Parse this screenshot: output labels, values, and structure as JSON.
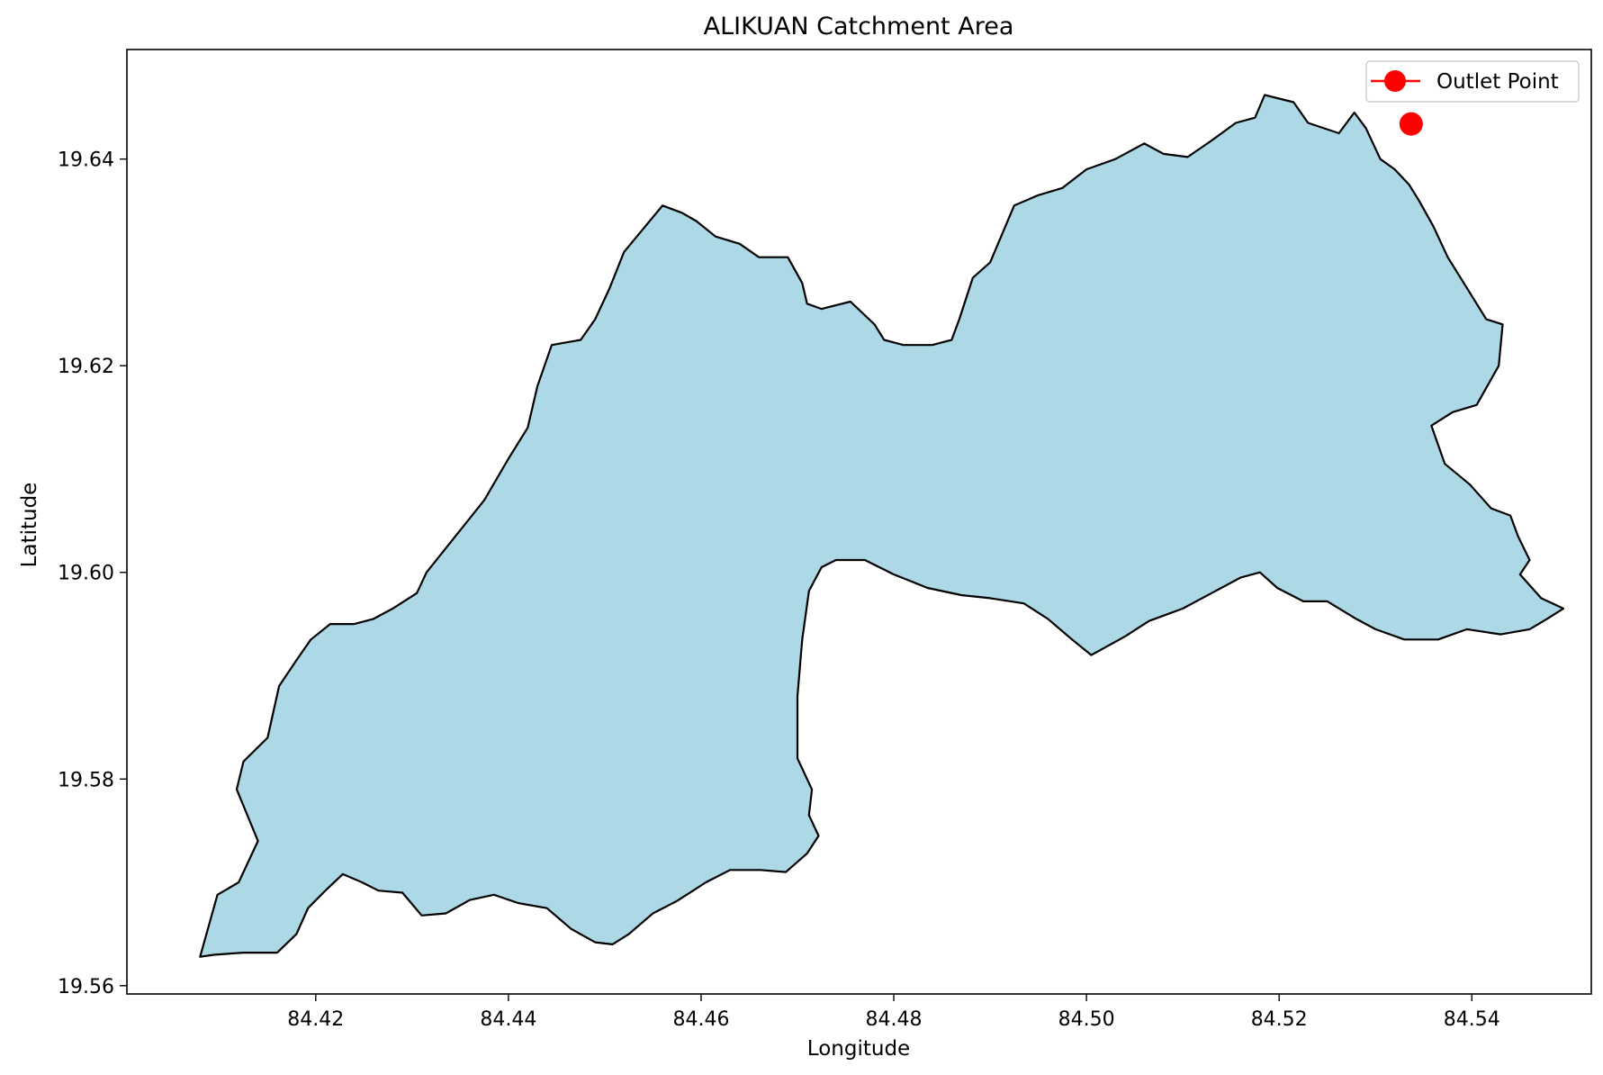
{
  "chart_data": {
    "type": "map",
    "title": "ALIKUAN Catchment Area",
    "xlabel": "Longitude",
    "ylabel": "Latitude",
    "xlim": [
      84.4004,
      84.5524
    ],
    "ylim": [
      19.5592,
      19.6506
    ],
    "xticks": [
      84.42,
      84.44,
      84.46,
      84.48,
      84.5,
      84.52,
      84.54
    ],
    "xtick_labels": [
      "84.42",
      "84.44",
      "84.46",
      "84.48",
      "84.50",
      "84.52",
      "84.54"
    ],
    "yticks": [
      19.56,
      19.58,
      19.6,
      19.62,
      19.64
    ],
    "ytick_labels": [
      "19.56",
      "19.58",
      "19.60",
      "19.62",
      "19.64"
    ],
    "grid": false,
    "legend": {
      "placement": "top-right",
      "entries": [
        {
          "label": "Outlet Point",
          "color": "#ff0000",
          "marker": "circle"
        }
      ]
    },
    "outlet_point": {
      "name": "Outlet Point",
      "lon": 84.5337,
      "lat": 19.6434,
      "color": "#ff0000"
    },
    "catchment": {
      "fill": "#add8e6",
      "edge": "#000000",
      "boundary": [
        [
          84.408,
          19.5628
        ],
        [
          84.4098,
          19.5688
        ],
        [
          84.412,
          19.57
        ],
        [
          84.414,
          19.574
        ],
        [
          84.4118,
          19.579
        ],
        [
          84.4125,
          19.5817
        ],
        [
          84.415,
          19.584
        ],
        [
          84.4162,
          19.589
        ],
        [
          84.418,
          19.5915
        ],
        [
          84.4195,
          19.5935
        ],
        [
          84.4215,
          19.595
        ],
        [
          84.424,
          19.595
        ],
        [
          84.426,
          19.5955
        ],
        [
          84.428,
          19.5965
        ],
        [
          84.4305,
          19.598
        ],
        [
          84.4315,
          19.6
        ],
        [
          84.4345,
          19.6035
        ],
        [
          84.4375,
          19.607
        ],
        [
          84.44,
          19.611
        ],
        [
          84.442,
          19.614
        ],
        [
          84.443,
          19.618
        ],
        [
          84.4445,
          19.622
        ],
        [
          84.4475,
          19.6225
        ],
        [
          84.449,
          19.6245
        ],
        [
          84.4505,
          19.6275
        ],
        [
          84.452,
          19.631
        ],
        [
          84.456,
          19.6355
        ],
        [
          84.458,
          19.6348
        ],
        [
          84.4595,
          19.634
        ],
        [
          84.4615,
          19.6325
        ],
        [
          84.464,
          19.6318
        ],
        [
          84.466,
          19.6305
        ],
        [
          84.469,
          19.6305
        ],
        [
          84.4705,
          19.628
        ],
        [
          84.471,
          19.626
        ],
        [
          84.4725,
          19.6255
        ],
        [
          84.4755,
          19.6262
        ],
        [
          84.478,
          19.624
        ],
        [
          84.479,
          19.6225
        ],
        [
          84.481,
          19.622
        ],
        [
          84.484,
          19.622
        ],
        [
          84.486,
          19.6225
        ],
        [
          84.4868,
          19.6245
        ],
        [
          84.4882,
          19.6285
        ],
        [
          84.49,
          19.63
        ],
        [
          84.4925,
          19.6355
        ],
        [
          84.495,
          19.6365
        ],
        [
          84.4975,
          19.6372
        ],
        [
          84.5,
          19.639
        ],
        [
          84.503,
          19.64
        ],
        [
          84.506,
          19.6415
        ],
        [
          84.508,
          19.6405
        ],
        [
          84.5105,
          19.6402
        ],
        [
          84.513,
          19.6418
        ],
        [
          84.5155,
          19.6435
        ],
        [
          84.5175,
          19.644
        ],
        [
          84.5185,
          19.6462
        ],
        [
          84.5215,
          19.6455
        ],
        [
          84.523,
          19.6435
        ],
        [
          84.5262,
          19.6425
        ],
        [
          84.5278,
          19.6445
        ],
        [
          84.529,
          19.643
        ],
        [
          84.5305,
          19.64
        ],
        [
          84.532,
          19.639
        ],
        [
          84.5335,
          19.6375
        ],
        [
          84.5345,
          19.636
        ],
        [
          84.536,
          19.6335
        ],
        [
          84.5375,
          19.6305
        ],
        [
          84.5395,
          19.6275
        ],
        [
          84.5415,
          19.6245
        ],
        [
          84.5432,
          19.624
        ],
        [
          84.5428,
          19.62
        ],
        [
          84.5405,
          19.6162
        ],
        [
          84.538,
          19.6155
        ],
        [
          84.5358,
          19.6142
        ],
        [
          84.5372,
          19.6105
        ],
        [
          84.5398,
          19.6085
        ],
        [
          84.542,
          19.6062
        ],
        [
          84.544,
          19.6055
        ],
        [
          84.5448,
          19.6035
        ],
        [
          84.546,
          19.6012
        ],
        [
          84.545,
          19.5998
        ],
        [
          84.5472,
          19.5975
        ],
        [
          84.5495,
          19.5965
        ],
        [
          84.5478,
          19.5955
        ],
        [
          84.546,
          19.5945
        ],
        [
          84.543,
          19.594
        ],
        [
          84.5395,
          19.5945
        ],
        [
          84.5365,
          19.5935
        ],
        [
          84.533,
          19.5935
        ],
        [
          84.53,
          19.5945
        ],
        [
          84.528,
          19.5955
        ],
        [
          84.525,
          19.5972
        ],
        [
          84.5225,
          19.5972
        ],
        [
          84.5198,
          19.5985
        ],
        [
          84.518,
          19.6
        ],
        [
          84.516,
          19.5995
        ],
        [
          84.513,
          19.598
        ],
        [
          84.51,
          19.5965
        ],
        [
          84.5065,
          19.5953
        ],
        [
          84.504,
          19.5938
        ],
        [
          84.5005,
          19.592
        ],
        [
          84.4985,
          19.5935
        ],
        [
          84.496,
          19.5955
        ],
        [
          84.4935,
          19.597
        ],
        [
          84.49,
          19.5975
        ],
        [
          84.487,
          19.5978
        ],
        [
          84.4835,
          19.5985
        ],
        [
          84.48,
          19.5998
        ],
        [
          84.477,
          19.6012
        ],
        [
          84.474,
          19.6012
        ],
        [
          84.4725,
          19.6005
        ],
        [
          84.4712,
          19.5982
        ],
        [
          84.4705,
          19.5935
        ],
        [
          84.47,
          19.588
        ],
        [
          84.47,
          19.582
        ],
        [
          84.4715,
          19.579
        ],
        [
          84.4712,
          19.5765
        ],
        [
          84.4722,
          19.5745
        ],
        [
          84.471,
          19.5728
        ],
        [
          84.4688,
          19.571
        ],
        [
          84.4662,
          19.5712
        ],
        [
          84.463,
          19.5712
        ],
        [
          84.4605,
          19.57
        ],
        [
          84.4575,
          19.5682
        ],
        [
          84.455,
          19.567
        ],
        [
          84.4525,
          19.565
        ],
        [
          84.4508,
          19.564
        ],
        [
          84.449,
          19.5642
        ],
        [
          84.4465,
          19.5655
        ],
        [
          84.444,
          19.5675
        ],
        [
          84.441,
          19.568
        ],
        [
          84.4385,
          19.5688
        ],
        [
          84.436,
          19.5683
        ],
        [
          84.4335,
          19.567
        ],
        [
          84.431,
          19.5668
        ],
        [
          84.429,
          19.569
        ],
        [
          84.4265,
          19.5692
        ],
        [
          84.4248,
          19.57
        ],
        [
          84.4228,
          19.5708
        ],
        [
          84.421,
          19.5692
        ],
        [
          84.4192,
          19.5675
        ],
        [
          84.418,
          19.565
        ],
        [
          84.416,
          19.5632
        ],
        [
          84.4125,
          19.5632
        ],
        [
          84.4095,
          19.563
        ]
      ]
    }
  }
}
